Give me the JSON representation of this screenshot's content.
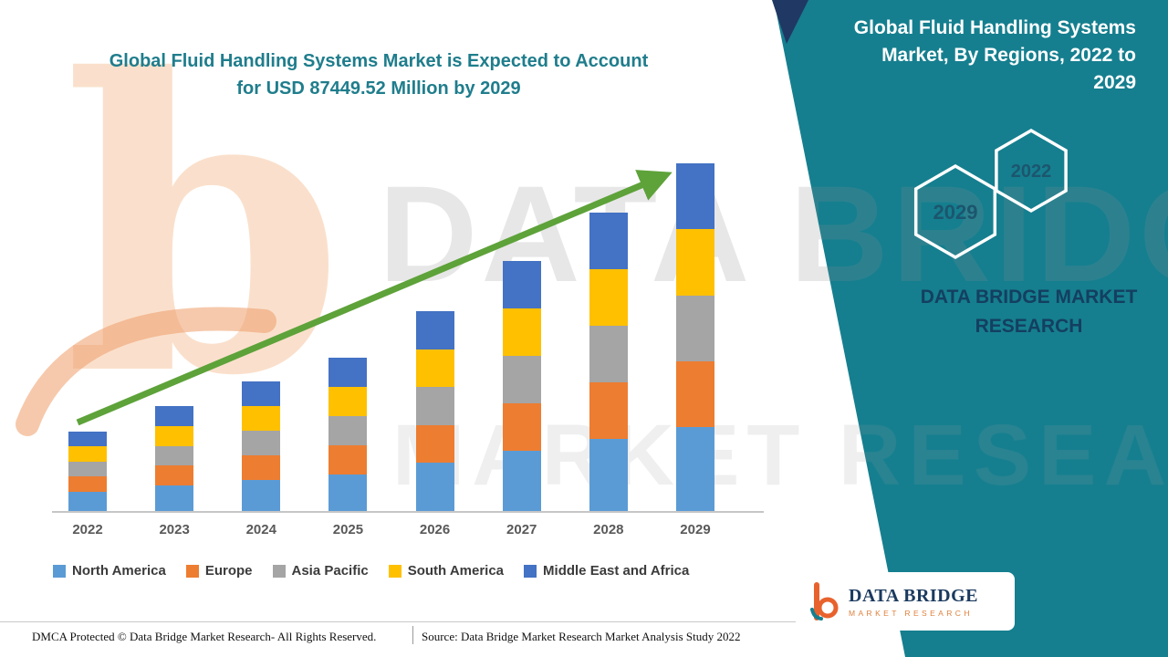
{
  "header": {
    "title_line1": "Global Fluid Handling Systems Market is Expected to Account",
    "title_line2": "for USD 87449.52 Million by 2029"
  },
  "side_panel": {
    "title": "Global Fluid Handling Systems Market, By Regions, 2022 to 2029",
    "hexagon_front_label": "2029",
    "hexagon_back_label": "2022",
    "brand_line1": "DATA BRIDGE MARKET",
    "brand_line2": "RESEARCH",
    "background_color": "#157f8f",
    "accent_color": "#203864"
  },
  "watermark": {
    "line1": "DATA BRIDGE",
    "line2": "MARKET RESEARCH",
    "logo_letter": "b"
  },
  "chart_data": {
    "type": "bar",
    "stacked": true,
    "title": "Global Fluid Handling Systems Market, By Regions, 2022 to 2029",
    "unit": "USD Million",
    "categories": [
      "2022",
      "2023",
      "2024",
      "2025",
      "2026",
      "2027",
      "2028",
      "2029"
    ],
    "series": [
      {
        "name": "North America",
        "color": "#5b9bd5",
        "values": [
          4900,
          6400,
          7900,
          9300,
          12100,
          15200,
          18100,
          21049.52
        ]
      },
      {
        "name": "Europe",
        "color": "#ed7d31",
        "values": [
          3800,
          5000,
          6200,
          7350,
          9550,
          11950,
          14250,
          16600
        ]
      },
      {
        "name": "Asia Pacific",
        "color": "#a5a5a5",
        "values": [
          3750,
          4950,
          6200,
          7350,
          9550,
          11950,
          14250,
          16600
        ]
      },
      {
        "name": "South America",
        "color": "#ffc000",
        "values": [
          3800,
          5000,
          6200,
          7350,
          9550,
          11950,
          14250,
          16600
        ]
      },
      {
        "name": "Middle East and Africa",
        "color": "#4472c4",
        "values": [
          3750,
          4950,
          6200,
          7350,
          9550,
          11950,
          14250,
          16600
        ]
      }
    ],
    "totals": [
      20000,
      26300,
      32700,
      38700,
      50300,
      63000,
      75100,
      87449.52
    ],
    "ylim": [
      0,
      90000
    ],
    "grid": false,
    "legend_position": "bottom",
    "annotation": "green upward trend arrow across bars",
    "arrow_color": "#5ea23a"
  },
  "footer": {
    "left_text": "DMCA Protected © Data Bridge Market Research- All Rights Reserved.",
    "right_text": "Source: Data Bridge Market Research Market Analysis Study 2022"
  },
  "logo_card": {
    "name": "DATA BRIDGE",
    "subtitle": "MARKET RESEARCH"
  }
}
